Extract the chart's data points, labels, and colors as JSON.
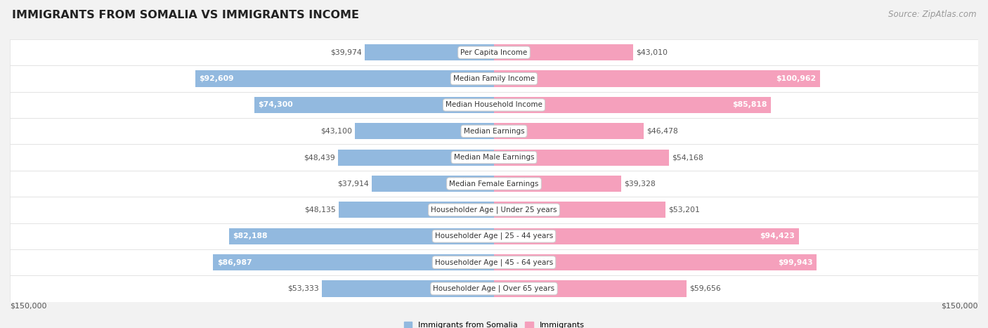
{
  "title": "IMMIGRANTS FROM SOMALIA VS IMMIGRANTS INCOME",
  "source": "Source: ZipAtlas.com",
  "categories": [
    "Per Capita Income",
    "Median Family Income",
    "Median Household Income",
    "Median Earnings",
    "Median Male Earnings",
    "Median Female Earnings",
    "Householder Age | Under 25 years",
    "Householder Age | 25 - 44 years",
    "Householder Age | 45 - 64 years",
    "Householder Age | Over 65 years"
  ],
  "somalia_values": [
    39974,
    92609,
    74300,
    43100,
    48439,
    37914,
    48135,
    82188,
    86987,
    53333
  ],
  "immigrants_values": [
    43010,
    100962,
    85818,
    46478,
    54168,
    39328,
    53201,
    94423,
    99943,
    59656
  ],
  "somalia_color": "#92b9df",
  "immigrants_color": "#f5a0bc",
  "somalia_color_strong": "#4a90d9",
  "immigrants_color_strong": "#f06090",
  "max_value": 150000,
  "bg_color": "#f2f2f2",
  "row_bg_white": "#ffffff",
  "row_bg_light": "#f7f7f7",
  "somalia_label": "Immigrants from Somalia",
  "immigrants_label": "Immigrants",
  "ylabel_left": "$150,000",
  "ylabel_right": "$150,000",
  "title_fontsize": 11.5,
  "source_fontsize": 8.5,
  "label_fontsize": 8.0,
  "category_fontsize": 7.5,
  "value_fontsize": 7.8,
  "large_threshold": 65000
}
